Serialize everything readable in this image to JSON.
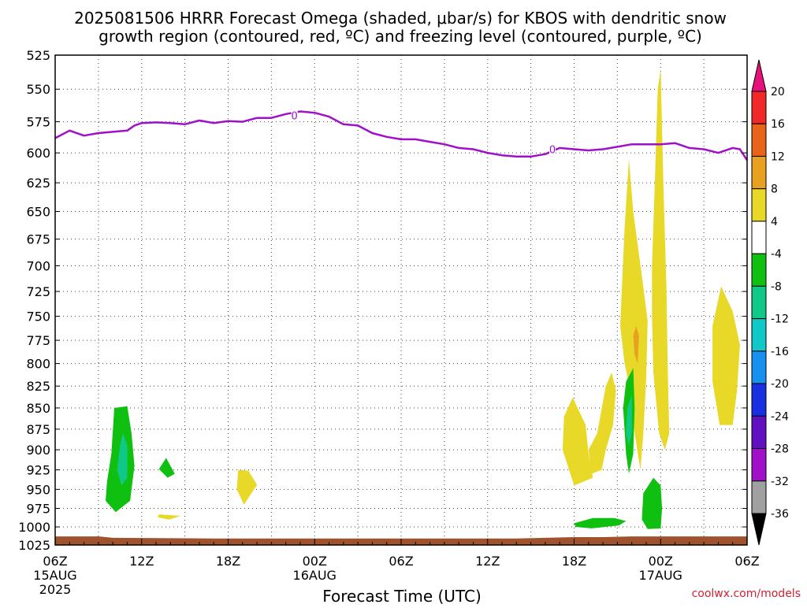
{
  "chart_data": {
    "type": "contour",
    "title_line1": "2025081506 HRRR Forecast Omega (shaded, μbar/s) for KBOS with dendritic snow",
    "title_line2": "growth region (contoured, red, ºC) and freezing level (contoured, purple, ºC)",
    "xlabel": "Forecast Time (UTC)",
    "credit": "coolwx.com/models",
    "y_ticks": [
      "525",
      "550",
      "575",
      "600",
      "625",
      "650",
      "675",
      "700",
      "725",
      "750",
      "775",
      "800",
      "825",
      "850",
      "875",
      "900",
      "925",
      "950",
      "975",
      "1000",
      "1025"
    ],
    "x_ticks": [
      {
        "label": "06Z",
        "sub1": "15AUG",
        "sub2": "2025"
      },
      {
        "label": "12Z",
        "sub1": "",
        "sub2": ""
      },
      {
        "label": "18Z",
        "sub1": "",
        "sub2": ""
      },
      {
        "label": "00Z",
        "sub1": "16AUG",
        "sub2": ""
      },
      {
        "label": "06Z",
        "sub1": "",
        "sub2": ""
      },
      {
        "label": "12Z",
        "sub1": "",
        "sub2": ""
      },
      {
        "label": "18Z",
        "sub1": "",
        "sub2": ""
      },
      {
        "label": "00Z",
        "sub1": "17AUG",
        "sub2": ""
      },
      {
        "label": "06Z",
        "sub1": "",
        "sub2": ""
      }
    ],
    "ylim": [
      525,
      1025
    ],
    "xlim_hours": [
      0,
      48
    ],
    "y_scale": "pressure (log)",
    "grid": true,
    "colorbar": {
      "labels": [
        "20",
        "16",
        "12",
        "8",
        "4",
        "-4",
        "-8",
        "-12",
        "-16",
        "-20",
        "-24",
        "-28",
        "-32",
        "-36"
      ],
      "colors": [
        "#e8107a",
        "#f02828",
        "#e86418",
        "#e8a020",
        "#e8d828",
        "#ffffff",
        "#10c010",
        "#10c888",
        "#10c8c8",
        "#1890f0",
        "#1830e0",
        "#6010c0",
        "#a010c8",
        "#a0a0a0",
        "#000000"
      ]
    },
    "freezing_level": {
      "label": "0",
      "points": [
        [
          0,
          588
        ],
        [
          1,
          582
        ],
        [
          2,
          586
        ],
        [
          3,
          584
        ],
        [
          4,
          583
        ],
        [
          5,
          582
        ],
        [
          5.5,
          578
        ],
        [
          6,
          576
        ],
        [
          7,
          575.5
        ],
        [
          8,
          576
        ],
        [
          9,
          577
        ],
        [
          10,
          574
        ],
        [
          11,
          576
        ],
        [
          12,
          574.5
        ],
        [
          13,
          575
        ],
        [
          14,
          572
        ],
        [
          15,
          572
        ],
        [
          16,
          569
        ],
        [
          17,
          567
        ],
        [
          18,
          568
        ],
        [
          19,
          571
        ],
        [
          20,
          577
        ],
        [
          21,
          578
        ],
        [
          22,
          584
        ],
        [
          23,
          587
        ],
        [
          24,
          589
        ],
        [
          25,
          589
        ],
        [
          26,
          591
        ],
        [
          27,
          593
        ],
        [
          28,
          596
        ],
        [
          29,
          597
        ],
        [
          30,
          600
        ],
        [
          31,
          602
        ],
        [
          32,
          603
        ],
        [
          33,
          603
        ],
        [
          34,
          601
        ],
        [
          35,
          596
        ],
        [
          36,
          597
        ],
        [
          37,
          598
        ],
        [
          38,
          597
        ],
        [
          39,
          595
        ],
        [
          40,
          593
        ],
        [
          41,
          593
        ],
        [
          42,
          593
        ],
        [
          43,
          592
        ],
        [
          44,
          596
        ],
        [
          45,
          597
        ],
        [
          46,
          600
        ],
        [
          47,
          596
        ],
        [
          47.5,
          597
        ],
        [
          48,
          606
        ]
      ],
      "color": "#a010c8"
    },
    "omega_regions": [
      {
        "value": "-4 to -8",
        "color": "#10c010",
        "points": [
          [
            4.1,
            850
          ],
          [
            5.0,
            848
          ],
          [
            5.3,
            880
          ],
          [
            5.5,
            920
          ],
          [
            5.2,
            965
          ],
          [
            4.2,
            980
          ],
          [
            3.5,
            965
          ],
          [
            3.6,
            940
          ],
          [
            3.9,
            905
          ]
        ]
      },
      {
        "value": "-8 to -12",
        "color": "#10c888",
        "points": [
          [
            4.7,
            880
          ],
          [
            5.0,
            895
          ],
          [
            5.0,
            935
          ],
          [
            4.6,
            945
          ],
          [
            4.3,
            925
          ],
          [
            4.5,
            895
          ]
        ]
      },
      {
        "value": "-4 to -8",
        "color": "#10c010",
        "points": [
          [
            7.7,
            910
          ],
          [
            8.3,
            930
          ],
          [
            7.8,
            935
          ],
          [
            7.2,
            924
          ]
        ]
      },
      {
        "value": "4 to 8",
        "color": "#e8d828",
        "points": [
          [
            7.2,
            983
          ],
          [
            8.7,
            985
          ],
          [
            7.9,
            990
          ],
          [
            7.1,
            987
          ]
        ]
      },
      {
        "value": "4 to 8",
        "color": "#e8d828",
        "points": [
          [
            12.7,
            925
          ],
          [
            13.4,
            926
          ],
          [
            14.0,
            944
          ],
          [
            13.1,
            970
          ],
          [
            12.6,
            950
          ]
        ]
      },
      {
        "value": "4 to 8",
        "color": "#e8d828",
        "points": [
          [
            35.3,
            860
          ],
          [
            35.9,
            838
          ],
          [
            36.8,
            870
          ],
          [
            37.0,
            905
          ],
          [
            37.3,
            935
          ],
          [
            36.0,
            945
          ],
          [
            35.2,
            900
          ]
        ]
      },
      {
        "value": "4 to 8",
        "color": "#e8d828",
        "points": [
          [
            37.0,
            900
          ],
          [
            37.6,
            880
          ],
          [
            38.2,
            825
          ],
          [
            38.6,
            810
          ],
          [
            38.9,
            830
          ],
          [
            38.7,
            870
          ],
          [
            38.2,
            900
          ],
          [
            37.9,
            925
          ],
          [
            37.2,
            930
          ]
        ]
      },
      {
        "value": "4 to 8",
        "color": "#e8d828",
        "points": [
          [
            39.3,
            725
          ],
          [
            39.5,
            665
          ],
          [
            39.8,
            605
          ],
          [
            40.1,
            650
          ],
          [
            40.7,
            710
          ],
          [
            41.1,
            755
          ],
          [
            41.0,
            815
          ],
          [
            40.8,
            880
          ],
          [
            40.6,
            925
          ],
          [
            40.2,
            880
          ],
          [
            39.9,
            830
          ],
          [
            39.5,
            800
          ],
          [
            39.2,
            760
          ]
        ]
      },
      {
        "value": "8 to 12",
        "color": "#e8a020",
        "points": [
          [
            40.3,
            760
          ],
          [
            40.5,
            770
          ],
          [
            40.4,
            800
          ],
          [
            40.2,
            790
          ],
          [
            40.1,
            770
          ]
        ]
      },
      {
        "value": "-4 to -8",
        "color": "#10c010",
        "points": [
          [
            39.6,
            820
          ],
          [
            40.1,
            805
          ],
          [
            40.2,
            850
          ],
          [
            40.1,
            905
          ],
          [
            39.8,
            930
          ],
          [
            39.6,
            905
          ],
          [
            39.4,
            850
          ]
        ]
      },
      {
        "value": "-8 to -12",
        "color": "#10c888",
        "points": [
          [
            39.7,
            850
          ],
          [
            40.0,
            835
          ],
          [
            40.0,
            880
          ],
          [
            39.8,
            895
          ],
          [
            39.6,
            880
          ]
        ]
      },
      {
        "value": "4 to 8",
        "color": "#e8d828",
        "points": [
          [
            41.4,
            700
          ],
          [
            41.6,
            625
          ],
          [
            41.8,
            550
          ],
          [
            42.0,
            535
          ],
          [
            42.2,
            630
          ],
          [
            42.4,
            720
          ],
          [
            42.5,
            810
          ],
          [
            42.6,
            880
          ],
          [
            42.3,
            900
          ],
          [
            41.9,
            880
          ],
          [
            41.5,
            810
          ],
          [
            41.4,
            750
          ]
        ]
      },
      {
        "value": "4 to 8",
        "color": "#e8d828",
        "points": [
          [
            45.6,
            760
          ],
          [
            46.2,
            720
          ],
          [
            47.0,
            745
          ],
          [
            47.5,
            780
          ],
          [
            47.3,
            830
          ],
          [
            47.0,
            870
          ],
          [
            46.1,
            870
          ],
          [
            45.6,
            820
          ]
        ]
      },
      {
        "value": "-4 to -8",
        "color": "#10c010",
        "points": [
          [
            36.0,
            995
          ],
          [
            37.3,
            988
          ],
          [
            38.8,
            988
          ],
          [
            39.6,
            992
          ],
          [
            39.1,
            998
          ],
          [
            37.2,
            1002
          ],
          [
            36.1,
            1000
          ]
        ]
      },
      {
        "value": "-4 to -8",
        "color": "#10c010",
        "points": [
          [
            40.8,
            955
          ],
          [
            41.5,
            935
          ],
          [
            42.0,
            945
          ],
          [
            42.1,
            975
          ],
          [
            42.0,
            1002
          ],
          [
            41.1,
            1003
          ],
          [
            40.7,
            990
          ]
        ]
      }
    ],
    "terrain": {
      "color": "#a0522d",
      "points": [
        [
          0,
          1013
        ],
        [
          3,
          1013
        ],
        [
          4,
          1015
        ],
        [
          11,
          1016
        ],
        [
          24,
          1016
        ],
        [
          32,
          1016
        ],
        [
          34,
          1015
        ],
        [
          36,
          1014
        ],
        [
          38,
          1014
        ],
        [
          40,
          1013
        ],
        [
          48,
          1013
        ]
      ]
    }
  }
}
